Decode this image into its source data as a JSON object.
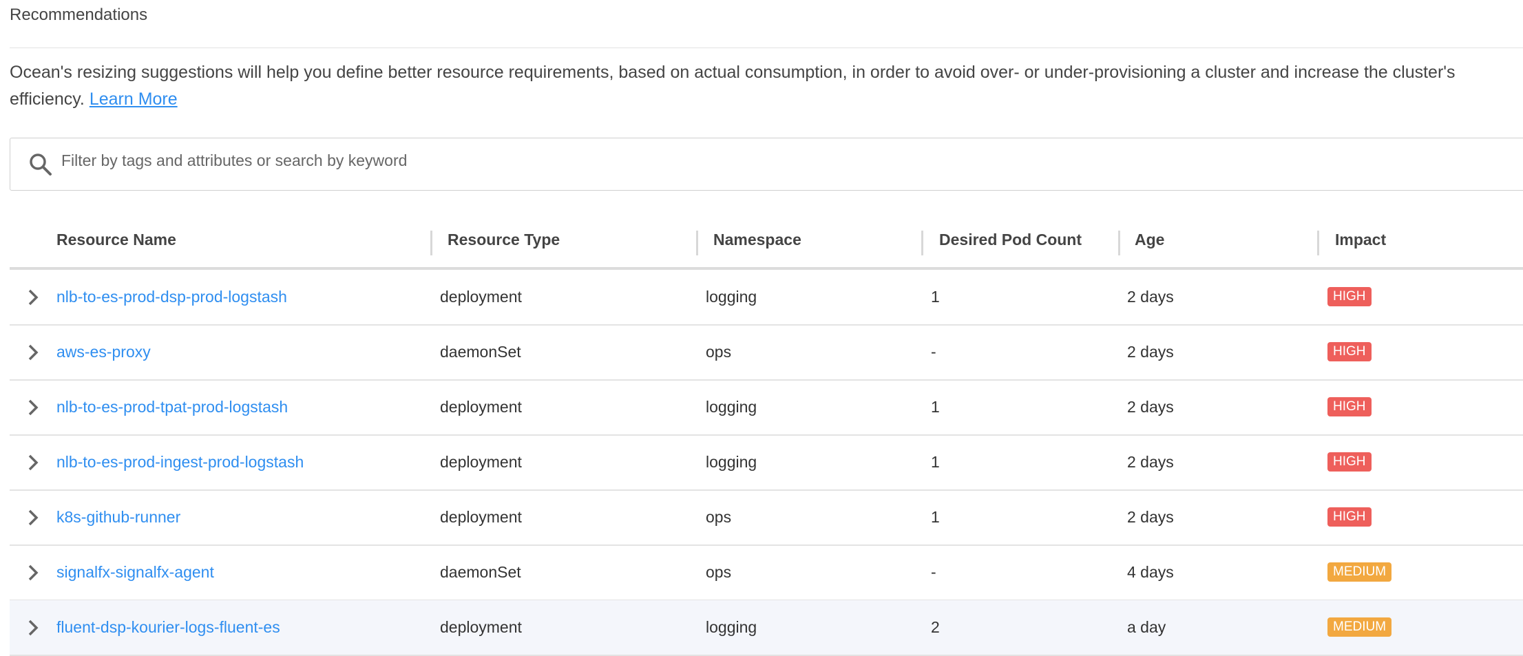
{
  "page": {
    "title": "Recommendations",
    "description": "Ocean's resizing suggestions will help you define better resource requirements, based on actual consumption, in order to avoid over- or under-provisioning a cluster and increase the cluster's efficiency.",
    "learn_more": "Learn More"
  },
  "search": {
    "placeholder": "Filter by tags and attributes or search by keyword",
    "icon": "search-icon"
  },
  "colors": {
    "link": "#2f8ef0",
    "HIGH": "#ee5f5b",
    "MEDIUM": "#f2a840"
  },
  "table": {
    "columns": [
      "Resource Name",
      "Resource Type",
      "Namespace",
      "Desired Pod Count",
      "Age",
      "Impact"
    ],
    "rows": [
      {
        "name": "nlb-to-es-prod-dsp-prod-logstash",
        "type": "deployment",
        "namespace": "logging",
        "pods": "1",
        "age": "2 days",
        "impact": "HIGH"
      },
      {
        "name": "aws-es-proxy",
        "type": "daemonSet",
        "namespace": "ops",
        "pods": "-",
        "age": "2 days",
        "impact": "HIGH"
      },
      {
        "name": "nlb-to-es-prod-tpat-prod-logstash",
        "type": "deployment",
        "namespace": "logging",
        "pods": "1",
        "age": "2 days",
        "impact": "HIGH"
      },
      {
        "name": "nlb-to-es-prod-ingest-prod-logstash",
        "type": "deployment",
        "namespace": "logging",
        "pods": "1",
        "age": "2 days",
        "impact": "HIGH"
      },
      {
        "name": "k8s-github-runner",
        "type": "deployment",
        "namespace": "ops",
        "pods": "1",
        "age": "2 days",
        "impact": "HIGH"
      },
      {
        "name": "signalfx-signalfx-agent",
        "type": "daemonSet",
        "namespace": "ops",
        "pods": "-",
        "age": "4 days",
        "impact": "MEDIUM"
      },
      {
        "name": "fluent-dsp-kourier-logs-fluent-es",
        "type": "deployment",
        "namespace": "logging",
        "pods": "2",
        "age": "a day",
        "impact": "MEDIUM"
      }
    ]
  }
}
